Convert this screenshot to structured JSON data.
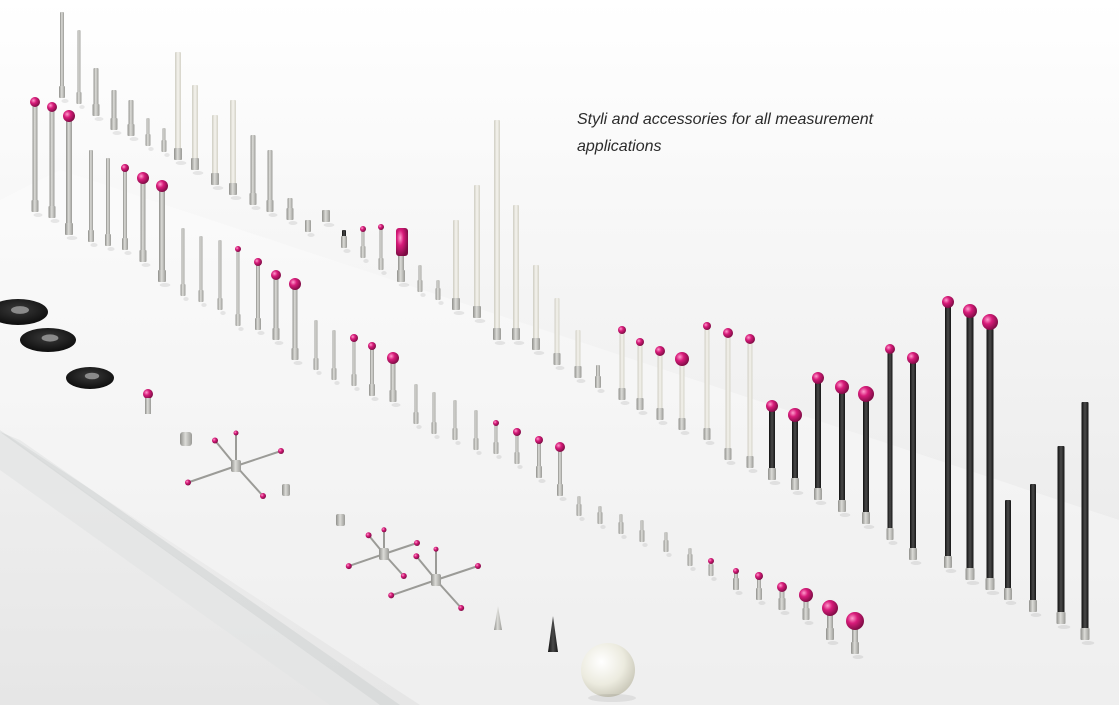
{
  "caption": {
    "line1": "Styli and accessories for all measurement",
    "line2": "applications"
  },
  "colors": {
    "background": "#f4f4f4",
    "ruby_tip": "#c8146e",
    "steel": "#b9b9b5",
    "ceramic": "#ecebe3",
    "carbon": "#242424",
    "plate": "#1e1e1e"
  },
  "objects": {
    "straight_styli": "styli-row",
    "extension_bars": "extension-row",
    "carbon_fibre_styli": "carbon-stylus-row",
    "star_styli": "star-stylus-cluster",
    "disc_styli": "disc-stylus-group",
    "ceramic_sphere": "calibration-sphere",
    "acrylic_base": "clear-acrylic-base"
  }
}
